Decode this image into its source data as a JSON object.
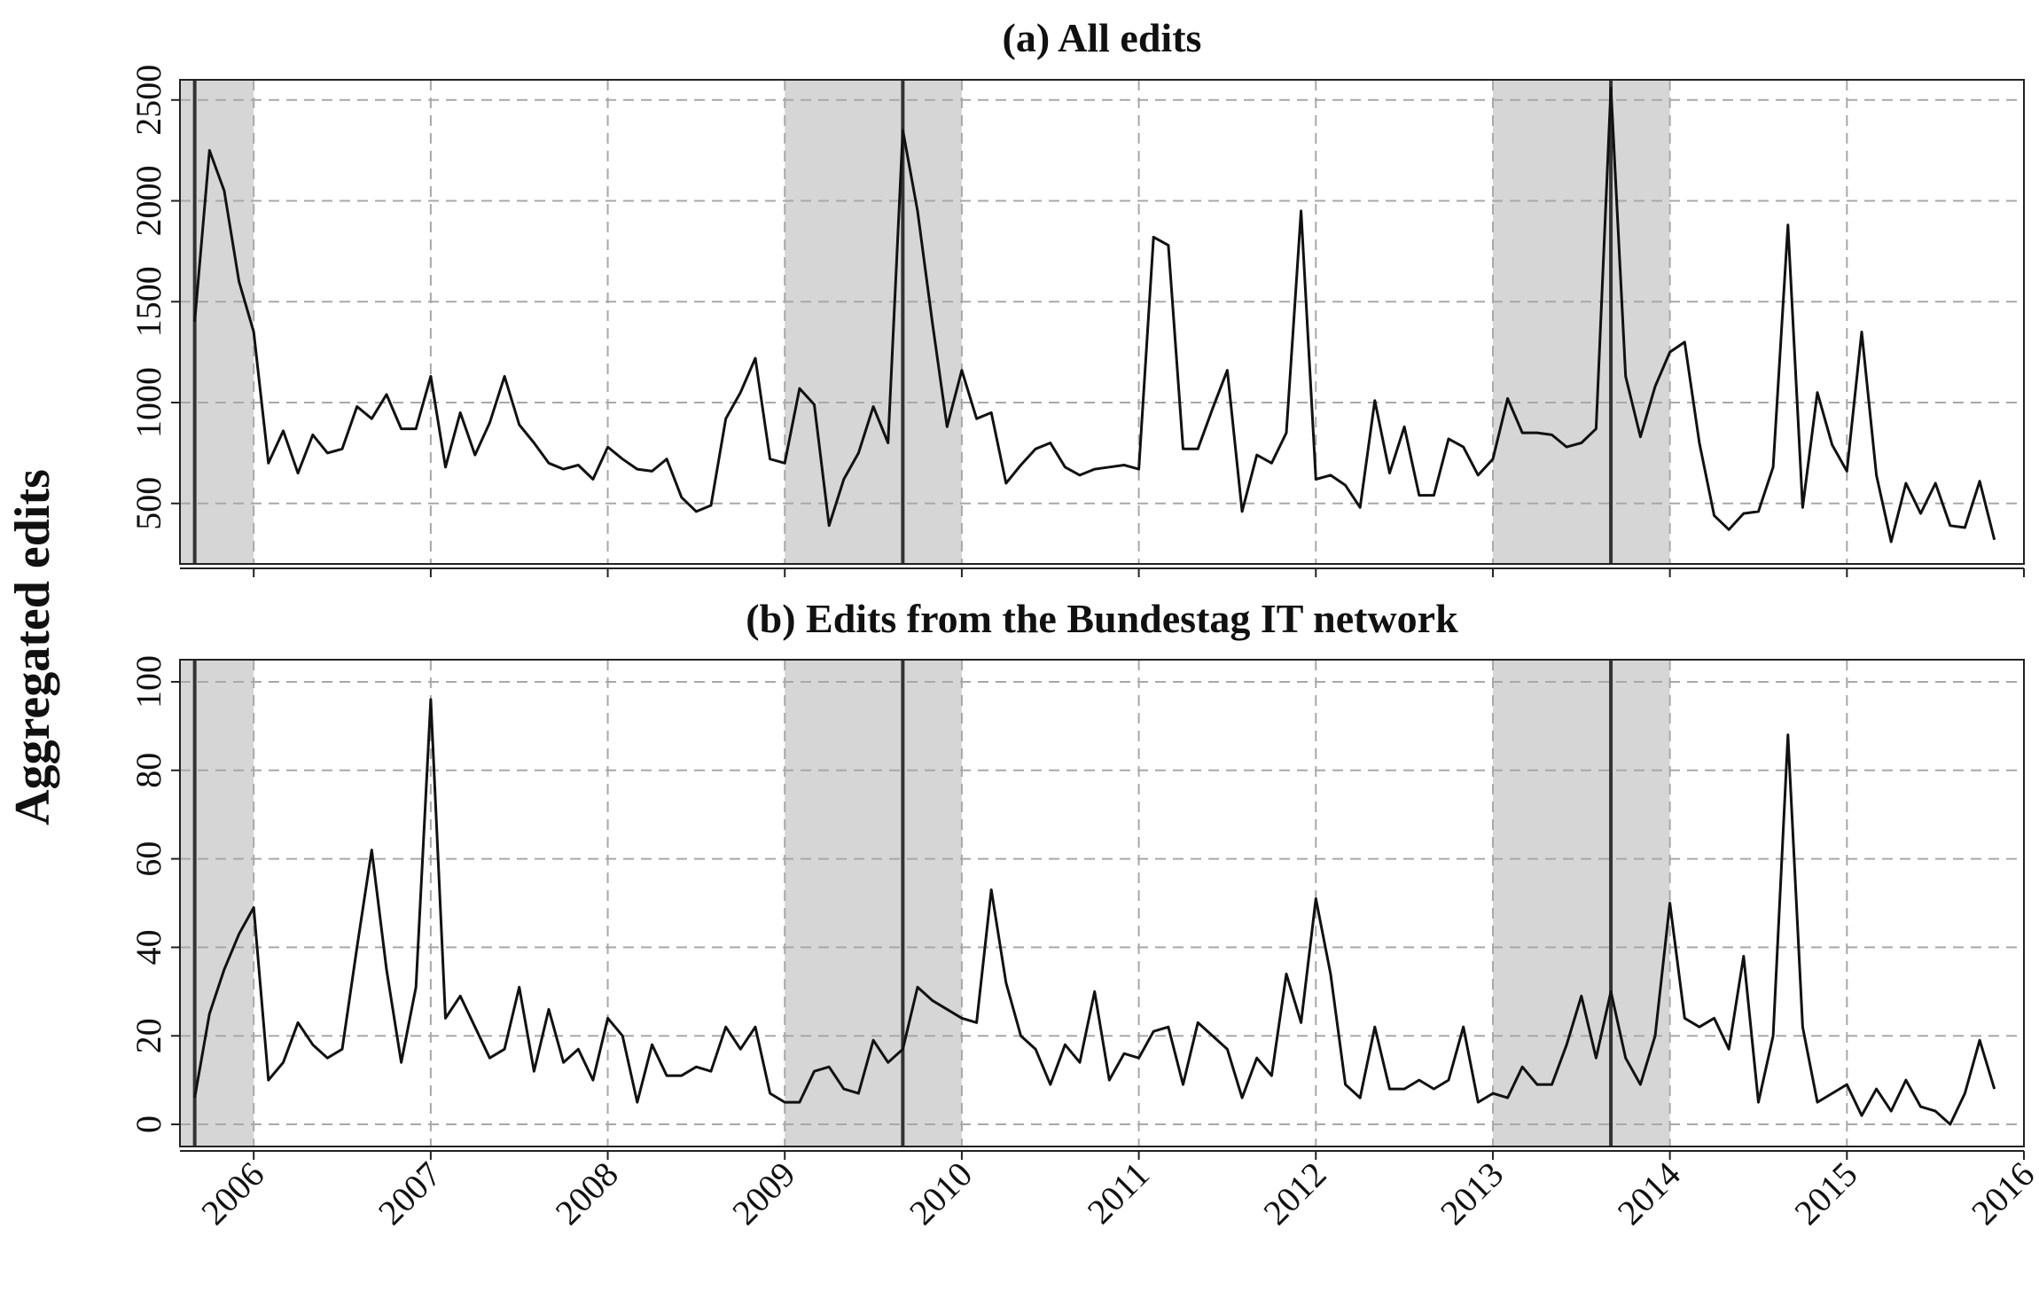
{
  "chart_data": [
    {
      "type": "line",
      "title": "(a) All edits",
      "ylabel": "Aggregated edits",
      "xlim": [
        "2005-08",
        "2016-01"
      ],
      "ylim": [
        200,
        2600
      ],
      "yticks": [
        500,
        1000,
        1500,
        2000,
        2500
      ],
      "xticks": [
        "2006",
        "2007",
        "2008",
        "2009",
        "2010",
        "2011",
        "2012",
        "2013",
        "2014",
        "2015",
        "2016"
      ],
      "grid": true,
      "shaded_periods": [
        [
          "2005-08",
          "2006-01"
        ],
        [
          "2009-01",
          "2010-01"
        ],
        [
          "2013-01",
          "2014-01"
        ]
      ],
      "vertical_lines": [
        "2005-09",
        "2009-09",
        "2013-09"
      ],
      "series": [
        {
          "x": [
            "2005-09",
            "2005-10",
            "2005-11",
            "2005-12",
            "2006-01",
            "2006-02",
            "2006-03",
            "2006-04",
            "2006-05",
            "2006-06",
            "2006-07",
            "2006-08",
            "2006-09",
            "2006-10",
            "2006-11",
            "2006-12",
            "2007-01",
            "2007-02",
            "2007-03",
            "2007-04",
            "2007-05",
            "2007-06",
            "2007-07",
            "2007-08",
            "2007-09",
            "2007-10",
            "2007-11",
            "2007-12",
            "2008-01",
            "2008-02",
            "2008-03",
            "2008-04",
            "2008-05",
            "2008-06",
            "2008-07",
            "2008-08",
            "2008-09",
            "2008-10",
            "2008-11",
            "2008-12",
            "2009-01",
            "2009-02",
            "2009-03",
            "2009-04",
            "2009-05",
            "2009-06",
            "2009-07",
            "2009-08",
            "2009-09",
            "2009-10",
            "2009-11",
            "2009-12",
            "2010-01",
            "2010-02",
            "2010-03",
            "2010-04",
            "2010-05",
            "2010-06",
            "2010-07",
            "2010-08",
            "2010-09",
            "2010-10",
            "2010-11",
            "2010-12",
            "2011-01",
            "2011-02",
            "2011-03",
            "2011-04",
            "2011-05",
            "2011-06",
            "2011-07",
            "2011-08",
            "2011-09",
            "2011-10",
            "2011-11",
            "2011-12",
            "2012-01",
            "2012-02",
            "2012-03",
            "2012-04",
            "2012-05",
            "2012-06",
            "2012-07",
            "2012-08",
            "2012-09",
            "2012-10",
            "2012-11",
            "2012-12",
            "2013-01",
            "2013-02",
            "2013-03",
            "2013-04",
            "2013-05",
            "2013-06",
            "2013-07",
            "2013-08",
            "2013-09",
            "2013-10",
            "2013-11",
            "2013-12",
            "2014-01",
            "2014-02",
            "2014-03",
            "2014-04",
            "2014-05",
            "2014-06",
            "2014-07",
            "2014-08",
            "2014-09",
            "2014-10",
            "2014-11",
            "2014-12",
            "2015-01",
            "2015-02",
            "2015-03",
            "2015-04",
            "2015-05",
            "2015-06",
            "2015-07",
            "2015-08",
            "2015-09",
            "2015-10",
            "2015-11"
          ],
          "values": [
            1400,
            2250,
            2050,
            1600,
            1350,
            700,
            860,
            650,
            840,
            750,
            770,
            980,
            920,
            1040,
            870,
            870,
            1130,
            680,
            950,
            740,
            900,
            1130,
            890,
            800,
            700,
            670,
            690,
            620,
            780,
            720,
            670,
            660,
            720,
            530,
            460,
            490,
            920,
            1050,
            1220,
            720,
            700,
            1070,
            990,
            390,
            620,
            750,
            980,
            800,
            2350,
            1950,
            1400,
            880,
            1160,
            920,
            950,
            600,
            690,
            770,
            800,
            680,
            640,
            670,
            680,
            690,
            670,
            1820,
            1780,
            770,
            770,
            970,
            1160,
            460,
            740,
            700,
            850,
            1950,
            620,
            640,
            590,
            480,
            1010,
            650,
            880,
            540,
            540,
            820,
            780,
            640,
            720,
            1020,
            850,
            850,
            840,
            780,
            800,
            870,
            2560,
            1130,
            830,
            1080,
            1250,
            1300,
            800,
            440,
            370,
            450,
            460,
            680,
            1880,
            480,
            1050,
            790,
            660,
            1350,
            640,
            310,
            600,
            450,
            600,
            390,
            380,
            610,
            320
          ]
        }
      ]
    },
    {
      "type": "line",
      "title": "(b) Edits from the Bundestag IT network",
      "ylabel": "Aggregated edits",
      "xlim": [
        "2005-08",
        "2016-01"
      ],
      "ylim": [
        -5,
        105
      ],
      "yticks": [
        0,
        20,
        40,
        60,
        80,
        100
      ],
      "xticks": [
        "2006",
        "2007",
        "2008",
        "2009",
        "2010",
        "2011",
        "2012",
        "2013",
        "2014",
        "2015",
        "2016"
      ],
      "grid": true,
      "shaded_periods": [
        [
          "2005-08",
          "2006-01"
        ],
        [
          "2009-01",
          "2010-01"
        ],
        [
          "2013-01",
          "2014-01"
        ]
      ],
      "vertical_lines": [
        "2005-09",
        "2009-09",
        "2013-09"
      ],
      "series": [
        {
          "x": [
            "2005-09",
            "2005-10",
            "2005-11",
            "2005-12",
            "2006-01",
            "2006-02",
            "2006-03",
            "2006-04",
            "2006-05",
            "2006-06",
            "2006-07",
            "2006-08",
            "2006-09",
            "2006-10",
            "2006-11",
            "2006-12",
            "2007-01",
            "2007-02",
            "2007-03",
            "2007-04",
            "2007-05",
            "2007-06",
            "2007-07",
            "2007-08",
            "2007-09",
            "2007-10",
            "2007-11",
            "2007-12",
            "2008-01",
            "2008-02",
            "2008-03",
            "2008-04",
            "2008-05",
            "2008-06",
            "2008-07",
            "2008-08",
            "2008-09",
            "2008-10",
            "2008-11",
            "2008-12",
            "2009-01",
            "2009-02",
            "2009-03",
            "2009-04",
            "2009-05",
            "2009-06",
            "2009-07",
            "2009-08",
            "2009-09",
            "2009-10",
            "2009-11",
            "2009-12",
            "2010-01",
            "2010-02",
            "2010-03",
            "2010-04",
            "2010-05",
            "2010-06",
            "2010-07",
            "2010-08",
            "2010-09",
            "2010-10",
            "2010-11",
            "2010-12",
            "2011-01",
            "2011-02",
            "2011-03",
            "2011-04",
            "2011-05",
            "2011-06",
            "2011-07",
            "2011-08",
            "2011-09",
            "2011-10",
            "2011-11",
            "2011-12",
            "2012-01",
            "2012-02",
            "2012-03",
            "2012-04",
            "2012-05",
            "2012-06",
            "2012-07",
            "2012-08",
            "2012-09",
            "2012-10",
            "2012-11",
            "2012-12",
            "2013-01",
            "2013-02",
            "2013-03",
            "2013-04",
            "2013-05",
            "2013-06",
            "2013-07",
            "2013-08",
            "2013-09",
            "2013-10",
            "2013-11",
            "2013-12",
            "2014-01",
            "2014-02",
            "2014-03",
            "2014-04",
            "2014-05",
            "2014-06",
            "2014-07",
            "2014-08",
            "2014-09",
            "2014-10",
            "2014-11",
            "2014-12",
            "2015-01",
            "2015-02",
            "2015-03",
            "2015-04",
            "2015-05",
            "2015-06",
            "2015-07",
            "2015-08",
            "2015-09",
            "2015-10",
            "2015-11"
          ],
          "values": [
            6,
            25,
            35,
            43,
            49,
            10,
            14,
            23,
            18,
            15,
            17,
            40,
            62,
            35,
            14,
            31,
            96,
            24,
            29,
            22,
            15,
            17,
            31,
            12,
            26,
            14,
            17,
            10,
            24,
            20,
            5,
            18,
            11,
            11,
            13,
            12,
            22,
            17,
            22,
            7,
            5,
            5,
            12,
            13,
            8,
            7,
            19,
            14,
            17,
            31,
            28,
            26,
            24,
            23,
            53,
            32,
            20,
            17,
            9,
            18,
            14,
            30,
            10,
            16,
            15,
            21,
            22,
            9,
            23,
            20,
            17,
            6,
            15,
            11,
            34,
            23,
            51,
            34,
            9,
            6,
            22,
            8,
            8,
            10,
            8,
            10,
            22,
            5,
            7,
            6,
            13,
            9,
            9,
            18,
            29,
            15,
            30,
            15,
            9,
            20,
            50,
            24,
            22,
            24,
            17,
            38,
            5,
            20,
            88,
            22,
            5,
            7,
            9,
            2,
            8,
            3,
            10,
            4,
            3,
            0,
            7,
            19,
            8
          ]
        }
      ]
    }
  ]
}
